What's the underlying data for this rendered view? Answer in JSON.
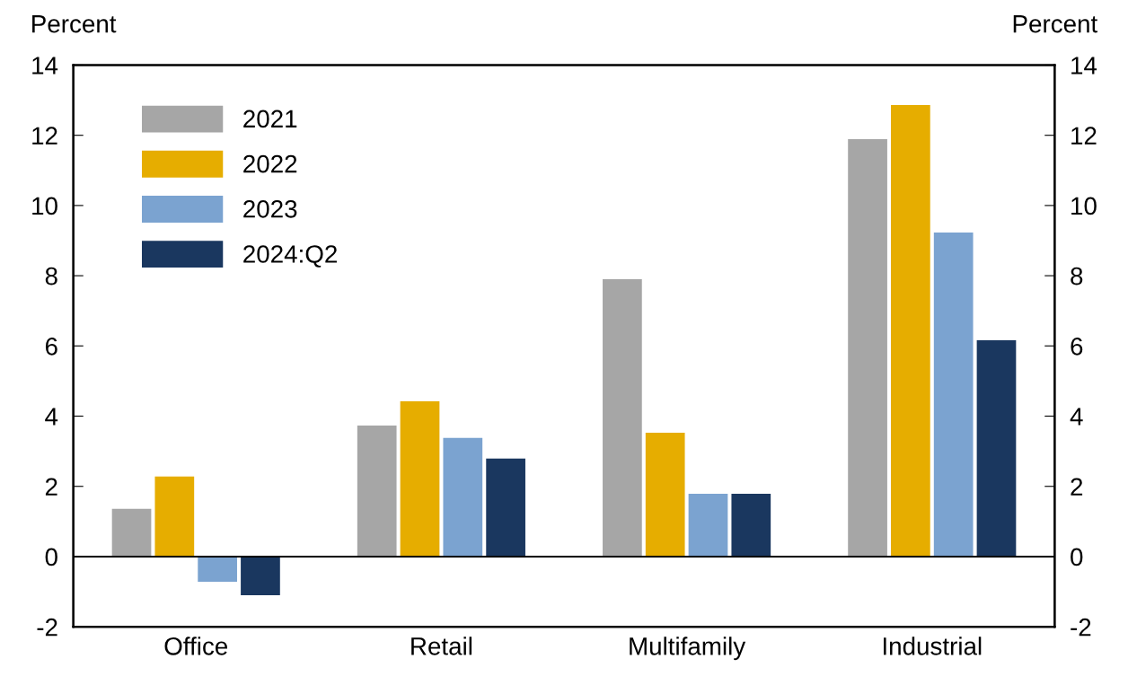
{
  "chart_data": {
    "type": "bar",
    "ylabel": "Percent",
    "y2label": "Percent",
    "categories": [
      "Office",
      "Retail",
      "Multifamily",
      "Industrial"
    ],
    "series": [
      {
        "name": "2021",
        "color": "#a6a6a6",
        "values": [
          1.36,
          3.73,
          7.9,
          11.89
        ]
      },
      {
        "name": "2022",
        "color": "#e6ad00",
        "values": [
          2.28,
          4.42,
          3.53,
          12.86
        ]
      },
      {
        "name": "2023",
        "color": "#7ba3d0",
        "values": [
          -0.72,
          3.38,
          1.79,
          9.23
        ]
      },
      {
        "name": "2024:Q2",
        "color": "#1a375f",
        "values": [
          -1.1,
          2.79,
          1.79,
          6.16
        ]
      }
    ],
    "ylim": [
      -2,
      14
    ],
    "yticks": [
      -2,
      0,
      2,
      4,
      6,
      8,
      10,
      12,
      14
    ],
    "y2lim": [
      -2,
      14
    ],
    "y2ticks": [
      -2,
      0,
      2,
      4,
      6,
      8,
      10,
      12,
      14
    ],
    "ref_lines": [
      {
        "axis": "y",
        "value": 0,
        "color": "#000000"
      }
    ],
    "grid": false,
    "legend": "top left"
  }
}
